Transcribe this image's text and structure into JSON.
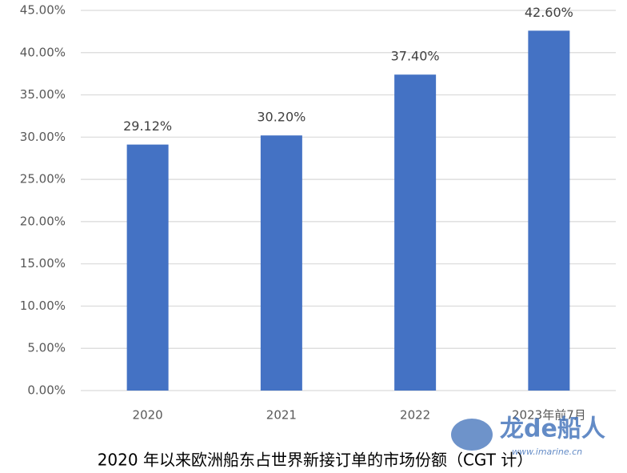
{
  "chart_data": {
    "type": "bar",
    "title": "2020 年以来欧洲船东占世界新接订单的市场份额（CGT 计）",
    "categories": [
      "2020",
      "2021",
      "2022",
      "2023年前7月"
    ],
    "values": [
      29.12,
      30.2,
      37.4,
      42.6
    ],
    "value_labels": [
      "29.12%",
      "30.20%",
      "37.40%",
      "42.60%"
    ],
    "color": "#4472c4",
    "ylim": [
      0,
      45
    ],
    "yticks": [
      {
        "value": 0,
        "label": "0.00%"
      },
      {
        "value": 5,
        "label": "5.00%"
      },
      {
        "value": 10,
        "label": "10.00%"
      },
      {
        "value": 15,
        "label": "15.00%"
      },
      {
        "value": 20,
        "label": "20.00%"
      },
      {
        "value": 25,
        "label": "25.00%"
      },
      {
        "value": 30,
        "label": "30.00%"
      },
      {
        "value": 35,
        "label": "35.00%"
      },
      {
        "value": 40,
        "label": "40.00%"
      },
      {
        "value": 45,
        "label": "45.00%"
      }
    ],
    "grid": true
  },
  "watermark": {
    "brand": "龙de船人",
    "url": "www.imarine.cn"
  }
}
